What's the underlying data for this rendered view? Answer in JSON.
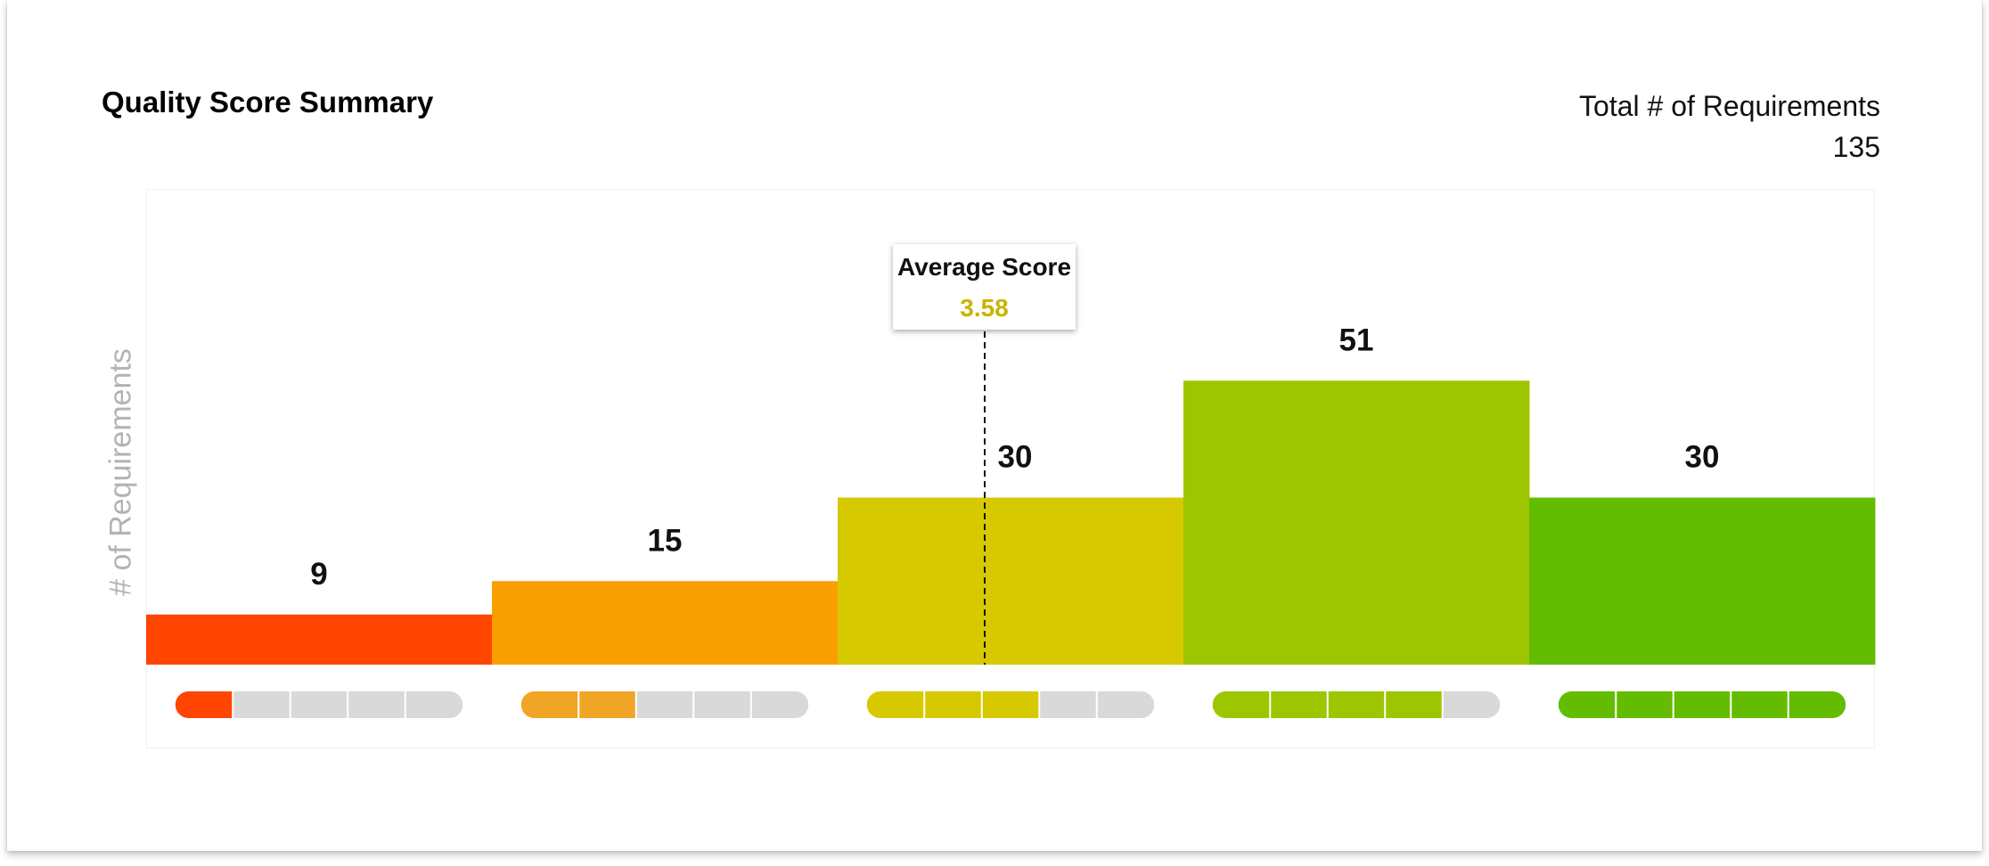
{
  "header": {
    "title": "Quality Score Summary",
    "total_label": "Total # of Requirements",
    "total_value": "135"
  },
  "average": {
    "label": "Average Score",
    "value": "3.58",
    "value_color": "#c8b400"
  },
  "chart_data": {
    "type": "bar",
    "ylabel": "# of Requirements",
    "categories": [
      "1",
      "2",
      "3",
      "4",
      "5"
    ],
    "values": [
      9,
      15,
      30,
      51,
      30
    ],
    "colors": [
      "#ff4500",
      "#fa9f00",
      "#d6c900",
      "#9dc600",
      "#64bc00"
    ],
    "pill_colors": [
      "#ff4500",
      "#f0a526",
      "#d6c900",
      "#9dc600",
      "#64bc00"
    ],
    "pill_empty_color": "#d9d9d9",
    "average_score": 3.58,
    "ylim": [
      0,
      80
    ]
  }
}
